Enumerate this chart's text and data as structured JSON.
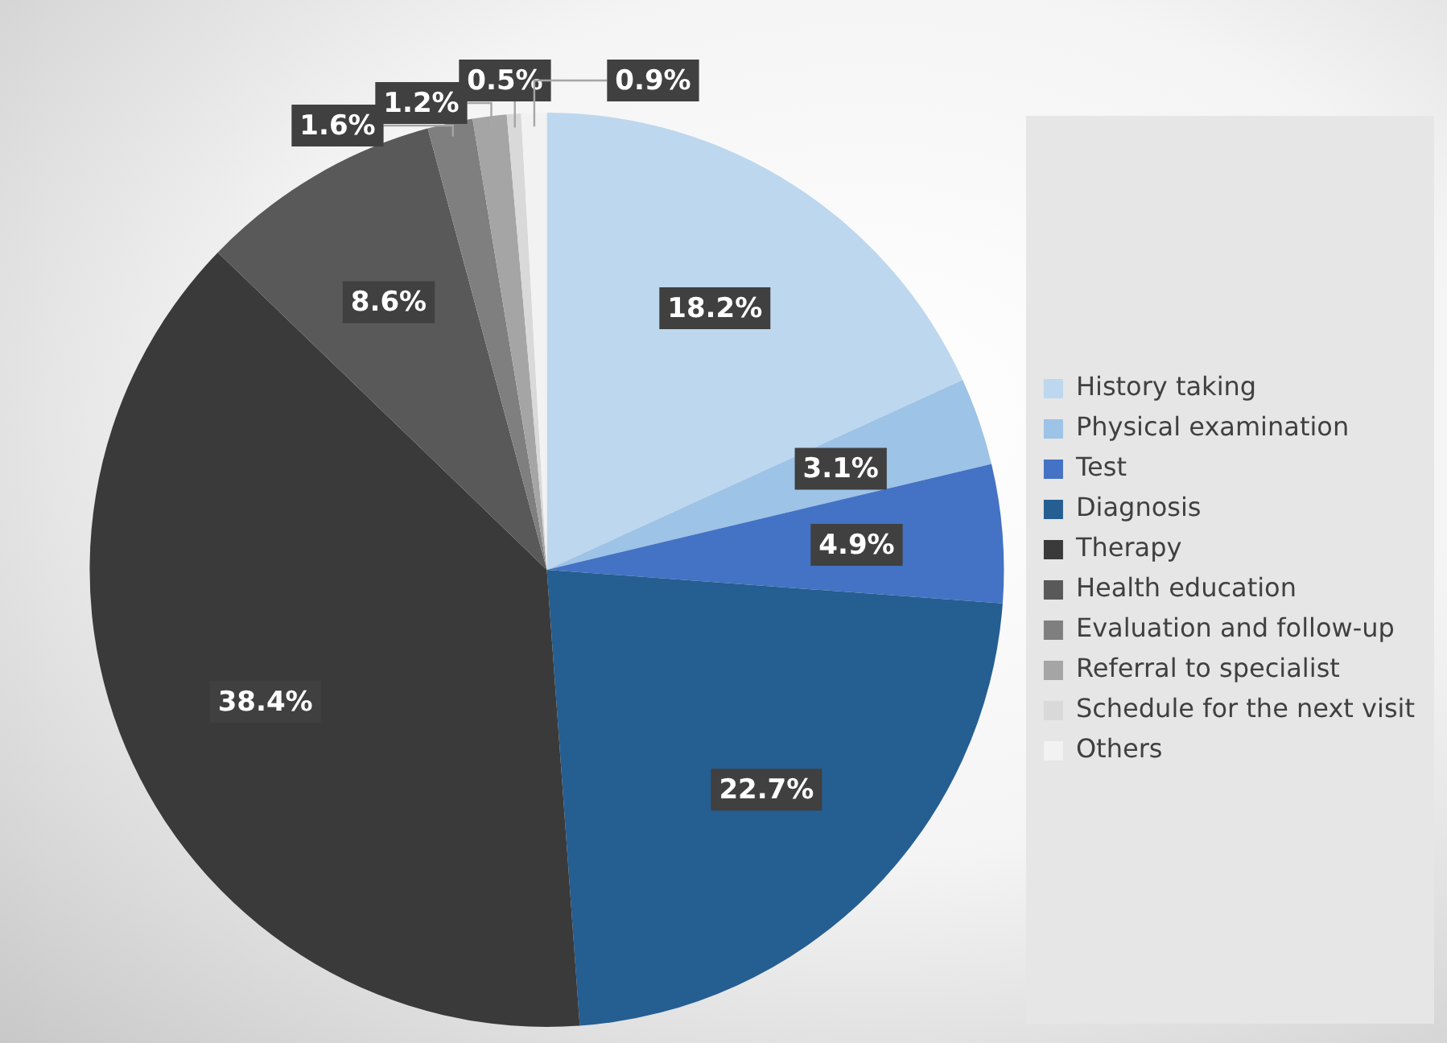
{
  "chart_data": {
    "type": "pie",
    "categories": [
      "History taking",
      "Physical examination",
      "Test",
      "Diagnosis",
      "Therapy",
      "Health education",
      "Evaluation and follow-up",
      "Referral to specialist",
      "Schedule for the next visit",
      "Others"
    ],
    "values": [
      18.2,
      3.1,
      4.9,
      22.7,
      38.4,
      8.6,
      1.6,
      1.2,
      0.5,
      0.9
    ],
    "value_labels": [
      "18.2%",
      "3.1%",
      "4.9%",
      "22.7%",
      "38.4%",
      "8.6%",
      "1.6%",
      "1.2%",
      "0.5%",
      "0.9%"
    ],
    "colors": [
      "#bdd7ee",
      "#9dc3e6",
      "#4472c4",
      "#255e91",
      "#3a3a3a",
      "#595959",
      "#7f7f7f",
      "#a5a5a5",
      "#d9d9d9",
      "#f2f2f2"
    ],
    "legend": "right"
  }
}
